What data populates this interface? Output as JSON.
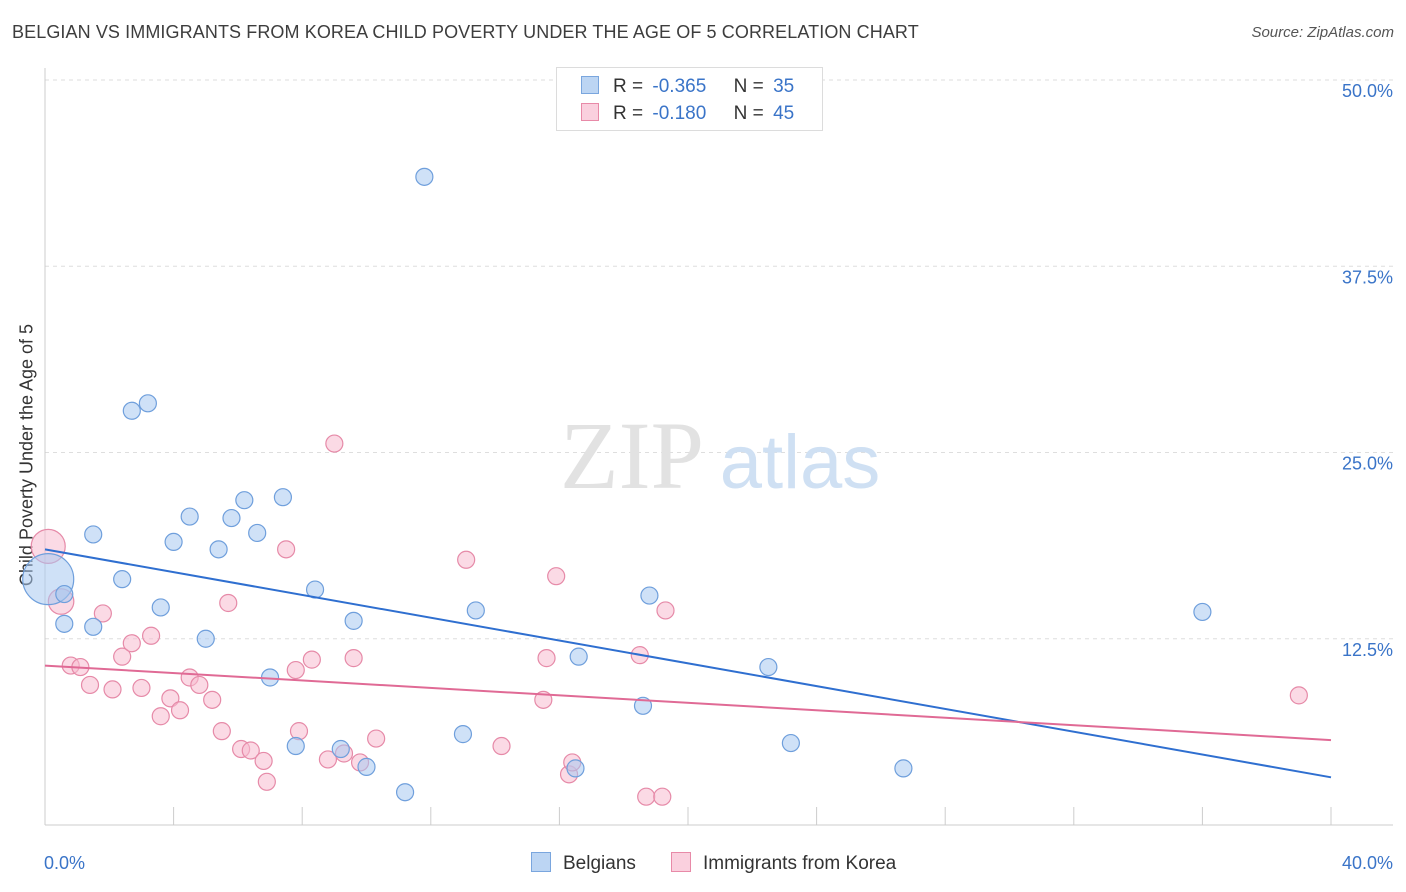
{
  "title": "BELGIAN VS IMMIGRANTS FROM KOREA CHILD POVERTY UNDER THE AGE OF 5 CORRELATION CHART",
  "source": "Source: ZipAtlas.com",
  "watermark": {
    "zip": "ZIP",
    "atlas": "atlas"
  },
  "legend": {
    "r_label": "R =",
    "n_label": "N =",
    "entries": [
      {
        "r": "-0.365",
        "n": "35",
        "color": "#a8c8f0",
        "border": "#7aa6de"
      },
      {
        "r": "-0.180",
        "n": "45",
        "color": "#f7bcd0",
        "border": "#e88aa8"
      }
    ]
  },
  "bottom_legend": [
    "Belgians",
    "Immigrants from Korea"
  ],
  "chart_data": {
    "type": "scatter",
    "title": "BELGIAN VS IMMIGRANTS FROM KOREA CHILD POVERTY UNDER THE AGE OF 5 CORRELATION CHART",
    "xlabel": "",
    "ylabel": "Child Poverty Under the Age of 5",
    "xlim": [
      0,
      40
    ],
    "ylim": [
      0,
      50
    ],
    "x_ticks_labels": [
      "0.0%",
      "40.0%"
    ],
    "y_ticks": [
      12.5,
      25.0,
      37.5,
      50.0
    ],
    "y_tick_labels": [
      "12.5%",
      "25.0%",
      "37.5%",
      "50.0%"
    ],
    "grid": true,
    "series": [
      {
        "name": "Belgians",
        "color": "#a8c8f0",
        "stroke": "#6f9fdc",
        "trend_color": "#2f6fd0",
        "trend": [
          [
            0,
            18.5
          ],
          [
            40,
            3.2
          ]
        ],
        "points": [
          [
            0.1,
            16.5,
            3
          ],
          [
            0.6,
            15.5,
            1
          ],
          [
            0.6,
            13.5,
            1
          ],
          [
            1.5,
            19.5,
            1
          ],
          [
            1.5,
            13.3,
            1
          ],
          [
            2.4,
            16.5,
            1
          ],
          [
            2.7,
            27.8,
            1
          ],
          [
            3.2,
            28.3,
            1
          ],
          [
            3.6,
            14.6,
            1
          ],
          [
            4.0,
            19.0,
            1
          ],
          [
            4.5,
            20.7,
            1
          ],
          [
            5.0,
            12.5,
            1
          ],
          [
            5.4,
            18.5,
            1
          ],
          [
            5.8,
            20.6,
            1
          ],
          [
            6.2,
            21.8,
            1
          ],
          [
            6.6,
            19.6,
            1
          ],
          [
            7.0,
            9.9,
            1
          ],
          [
            7.4,
            22.0,
            1
          ],
          [
            7.8,
            5.3,
            1
          ],
          [
            8.4,
            15.8,
            1
          ],
          [
            9.2,
            5.1,
            1
          ],
          [
            9.6,
            13.7,
            1
          ],
          [
            10.0,
            3.9,
            1
          ],
          [
            11.2,
            2.2,
            1
          ],
          [
            11.8,
            43.5,
            1
          ],
          [
            13.0,
            6.1,
            1
          ],
          [
            13.4,
            14.4,
            1
          ],
          [
            16.5,
            3.8,
            1
          ],
          [
            16.6,
            11.3,
            1
          ],
          [
            18.6,
            8.0,
            1
          ],
          [
            18.8,
            15.4,
            1
          ],
          [
            22.5,
            10.6,
            1
          ],
          [
            23.2,
            5.5,
            1
          ],
          [
            26.7,
            3.8,
            1
          ],
          [
            36.0,
            14.3,
            1
          ]
        ]
      },
      {
        "name": "Immigrants from Korea",
        "color": "#f7bcd0",
        "stroke": "#e68aa8",
        "trend_color": "#e06a95",
        "trend": [
          [
            0,
            10.7
          ],
          [
            40,
            5.7
          ]
        ],
        "points": [
          [
            0.1,
            18.7,
            2
          ],
          [
            0.5,
            15.0,
            1.5
          ],
          [
            0.8,
            10.7,
            1
          ],
          [
            1.1,
            10.6,
            1
          ],
          [
            1.4,
            9.4,
            1
          ],
          [
            1.8,
            14.2,
            1
          ],
          [
            2.1,
            9.1,
            1
          ],
          [
            2.4,
            11.3,
            1
          ],
          [
            2.7,
            12.2,
            1
          ],
          [
            3.0,
            9.2,
            1
          ],
          [
            3.3,
            12.7,
            1
          ],
          [
            3.6,
            7.3,
            1
          ],
          [
            3.9,
            8.5,
            1
          ],
          [
            4.2,
            7.7,
            1
          ],
          [
            4.5,
            9.9,
            1
          ],
          [
            4.8,
            9.4,
            1
          ],
          [
            5.2,
            8.4,
            1
          ],
          [
            5.5,
            6.3,
            1
          ],
          [
            5.7,
            14.9,
            1
          ],
          [
            6.1,
            5.1,
            1
          ],
          [
            6.4,
            5.0,
            1
          ],
          [
            6.8,
            4.3,
            1
          ],
          [
            6.9,
            2.9,
            1
          ],
          [
            7.5,
            18.5,
            1
          ],
          [
            7.8,
            10.4,
            1
          ],
          [
            7.9,
            6.3,
            1
          ],
          [
            8.3,
            11.1,
            1
          ],
          [
            8.8,
            4.4,
            1
          ],
          [
            9.0,
            25.6,
            1
          ],
          [
            9.3,
            4.8,
            1
          ],
          [
            9.6,
            11.2,
            1
          ],
          [
            9.8,
            4.2,
            1
          ],
          [
            10.3,
            5.8,
            1
          ],
          [
            13.1,
            17.8,
            1
          ],
          [
            14.2,
            5.3,
            1
          ],
          [
            15.5,
            8.4,
            1
          ],
          [
            15.6,
            11.2,
            1
          ],
          [
            15.9,
            16.7,
            1
          ],
          [
            16.3,
            3.4,
            1
          ],
          [
            16.4,
            4.2,
            1
          ],
          [
            18.5,
            11.4,
            1
          ],
          [
            18.7,
            1.9,
            1
          ],
          [
            19.2,
            1.9,
            1
          ],
          [
            19.3,
            14.4,
            1
          ],
          [
            39.0,
            8.7,
            1
          ]
        ]
      }
    ]
  }
}
